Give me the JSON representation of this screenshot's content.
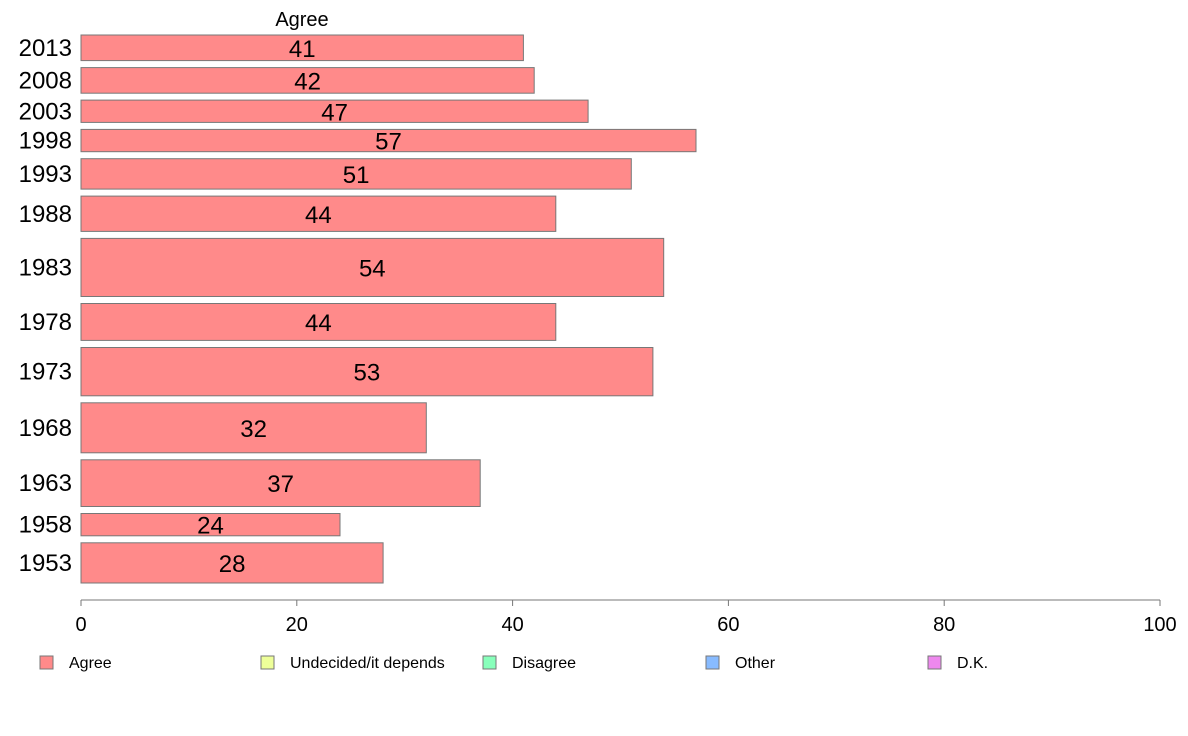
{
  "chart_data": {
    "type": "bar",
    "orientation": "horizontal",
    "top_label": "Agree",
    "categories": [
      "2013",
      "2008",
      "2003",
      "1998",
      "1993",
      "1988",
      "1983",
      "1978",
      "1973",
      "1968",
      "1963",
      "1958",
      "1953"
    ],
    "values": [
      41,
      42,
      47,
      57,
      51,
      44,
      54,
      44,
      53,
      32,
      37,
      24,
      28
    ],
    "row_weights": [
      1.0,
      1.0,
      0.9,
      0.9,
      1.15,
      1.3,
      2.0,
      1.35,
      1.7,
      1.75,
      1.65,
      0.9,
      1.45
    ],
    "xlim": [
      0,
      100
    ],
    "xticks": [
      0,
      20,
      40,
      60,
      80,
      100
    ],
    "bar_color": "#ff8a8a",
    "bar_edge": "#777777",
    "legend": {
      "position": "bottom",
      "items": [
        {
          "label": "Agree",
          "color": "#ff8a8a"
        },
        {
          "label": "Undecided/it depends",
          "color": "#eeff99"
        },
        {
          "label": "Disagree",
          "color": "#88ffbb"
        },
        {
          "label": "Other",
          "color": "#88bbff"
        },
        {
          "label": "D.K.",
          "color": "#ee88ee"
        }
      ]
    }
  }
}
